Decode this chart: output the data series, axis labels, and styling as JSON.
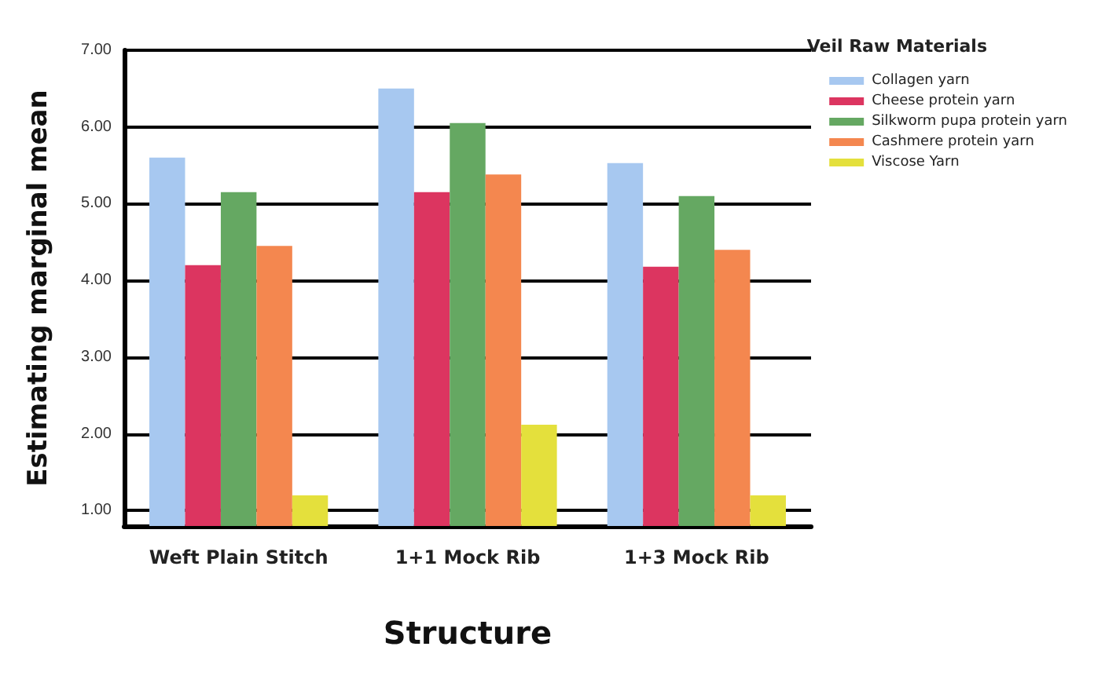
{
  "chart_data": {
    "type": "bar",
    "xlabel": "Structure",
    "ylabel": "Estimating marginal mean",
    "legend_title": "Veil Raw Materials",
    "categories": [
      "Weft Plain Stitch",
      "1+1 Mock Rib",
      "1+3 Mock Rib"
    ],
    "series": [
      {
        "name": "Collagen yarn",
        "color": "#a7c8f0",
        "values": [
          5.6,
          6.5,
          5.53
        ]
      },
      {
        "name": "Cheese protein yarn",
        "color": "#dc3560",
        "values": [
          4.2,
          5.15,
          4.18
        ]
      },
      {
        "name": "Silkworm pupa protein yarn",
        "color": "#65a862",
        "values": [
          5.15,
          6.05,
          5.1
        ]
      },
      {
        "name": "Cashmere protein yarn",
        "color": "#f4874f",
        "values": [
          4.45,
          5.38,
          4.4
        ]
      },
      {
        "name": "Viscose Yarn",
        "color": "#e4e03c",
        "values": [
          1.2,
          2.12,
          1.2
        ]
      }
    ],
    "ylim": [
      0.8,
      7
    ],
    "yticks": [
      {
        "value": 1,
        "label": "1.00"
      },
      {
        "value": 2,
        "label": "2.00"
      },
      {
        "value": 3,
        "label": "3.00"
      },
      {
        "value": 4,
        "label": "4.00"
      },
      {
        "value": 5,
        "label": "5.00"
      },
      {
        "value": 6,
        "label": "6.00"
      },
      {
        "value": 7,
        "label": "7.00"
      }
    ],
    "grid": "y",
    "legend": "top right"
  }
}
